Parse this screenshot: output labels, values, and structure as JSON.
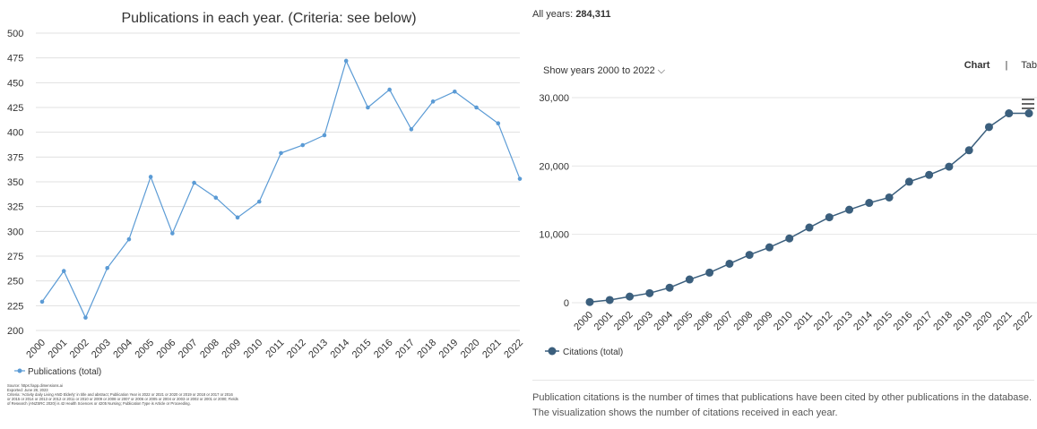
{
  "left_panel": {
    "source_lines": [
      "Source: https://app.dimensions.ai",
      "Exported: June 28, 2023",
      "Criteria: 'Activity daily Living AND Elderly' in title and abstract; Publication Year is 2022 or 2021 or 2020 or 2019 or 2018 or 2017 or 2016",
      "or 2015 or 2014 or 2013 or 2012 or 2011 or 2010 or 2009 or 2008 or 2007 or 2006 or 2005 or 2004 or 2003 or 2002 or 2001 or 2000; Fields",
      "of Research (ANZSRC 2020) is 42 Health Sciences or 4205 Nursing; Publication Type is Article or Proceeding."
    ]
  },
  "right_panel": {
    "all_years_label": "All years:",
    "all_years_value": "284,311",
    "year_selector": "Show years 2000 to 2022 ⌵",
    "view_chart": "Chart",
    "view_separator": "|",
    "view_table": "Tab",
    "description_line1": "Publication citations is the number of times that publications have been cited by other publications in the database.",
    "description_line2": "The visualization shows the number of citations received in each year."
  },
  "chart_data": [
    {
      "type": "line",
      "title": "Publications in each year. (Criteria: see below)",
      "xlabel": "",
      "ylabel": "",
      "x": [
        "2000",
        "2001",
        "2002",
        "2003",
        "2004",
        "2005",
        "2006",
        "2007",
        "2008",
        "2009",
        "2010",
        "2011",
        "2012",
        "2013",
        "2014",
        "2015",
        "2016",
        "2017",
        "2018",
        "2019",
        "2020",
        "2021",
        "2022"
      ],
      "series": [
        {
          "name": "Publications (total)",
          "values": [
            229,
            260,
            213,
            263,
            292,
            355,
            298,
            349,
            334,
            314,
            330,
            379,
            387,
            397,
            472,
            425,
            443,
            403,
            431,
            441,
            425,
            409,
            353
          ]
        }
      ],
      "ylim": [
        200,
        500
      ],
      "yticks": [
        "200",
        "225",
        "250",
        "275",
        "300",
        "325",
        "350",
        "375",
        "400",
        "425",
        "450",
        "475",
        "500"
      ],
      "grid": true,
      "legend": "bottom-left",
      "color": "#5b9bd5"
    },
    {
      "type": "line",
      "title": "",
      "xlabel": "",
      "ylabel": "",
      "x": [
        "2000",
        "2001",
        "2002",
        "2003",
        "2004",
        "2005",
        "2006",
        "2007",
        "2008",
        "2009",
        "2010",
        "2011",
        "2012",
        "2013",
        "2014",
        "2015",
        "2016",
        "2017",
        "2018",
        "2019",
        "2020",
        "2021",
        "2022"
      ],
      "series": [
        {
          "name": "Citations (total)",
          "values": [
            100,
            400,
            900,
            1400,
            2200,
            3400,
            4400,
            5700,
            7000,
            8100,
            9400,
            11000,
            12500,
            13600,
            14600,
            15400,
            17700,
            18700,
            19900,
            22300,
            25700,
            27700,
            27700
          ]
        }
      ],
      "ylim": [
        0,
        30000
      ],
      "yticks": [
        "0",
        "10,000",
        "20,000",
        "30,000"
      ],
      "grid": true,
      "legend": "bottom-left",
      "color": "#3b5f7d"
    }
  ]
}
